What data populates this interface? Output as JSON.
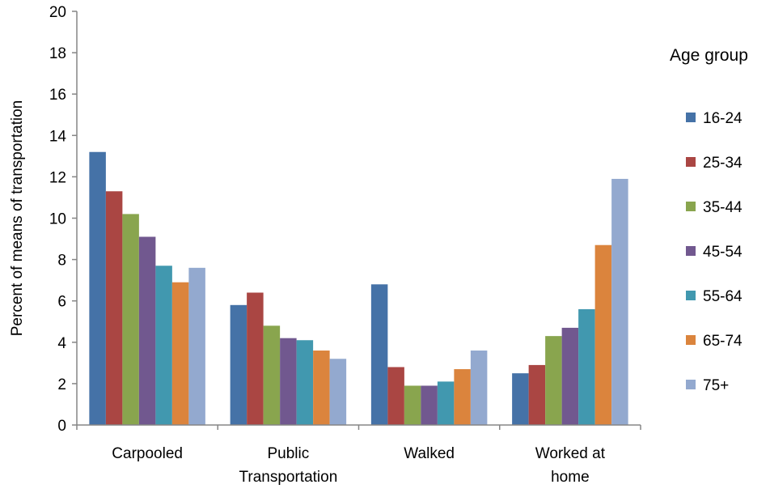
{
  "chart_data": {
    "type": "bar",
    "categories": [
      [
        "Carpooled"
      ],
      [
        "Public",
        "Transportation"
      ],
      [
        "Walked"
      ],
      [
        "Worked at",
        "home"
      ]
    ],
    "series": [
      {
        "name": "16-24",
        "color": "#4572A7",
        "values": [
          13.2,
          5.8,
          6.8,
          2.5
        ]
      },
      {
        "name": "25-34",
        "color": "#AA4643",
        "values": [
          11.3,
          6.4,
          2.8,
          2.9
        ]
      },
      {
        "name": "35-44",
        "color": "#89A54E",
        "values": [
          10.2,
          4.8,
          1.9,
          4.3
        ]
      },
      {
        "name": "45-54",
        "color": "#71588F",
        "values": [
          9.1,
          4.2,
          1.9,
          4.7
        ]
      },
      {
        "name": "55-64",
        "color": "#4198AF",
        "values": [
          7.7,
          4.1,
          2.1,
          5.6
        ]
      },
      {
        "name": "65-74",
        "color": "#DB843D",
        "values": [
          6.9,
          3.6,
          2.7,
          8.7
        ]
      },
      {
        "name": "75+",
        "color": "#93A9CF",
        "values": [
          7.6,
          3.2,
          3.6,
          11.9
        ]
      }
    ],
    "title": "",
    "xlabel": "",
    "ylabel": "Percent of means of transportation",
    "ylim": [
      0,
      20
    ],
    "yticks": [
      0,
      2,
      4,
      6,
      8,
      10,
      12,
      14,
      16,
      18,
      20
    ],
    "grid": false,
    "legend": {
      "title": "Age group",
      "position": "right"
    }
  }
}
